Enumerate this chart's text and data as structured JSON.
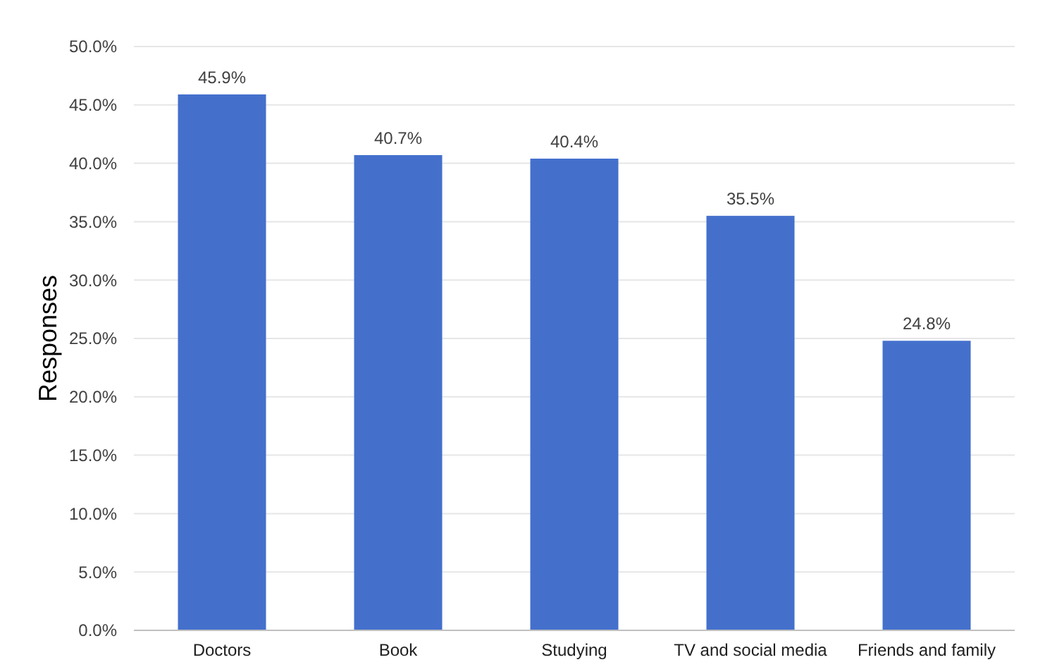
{
  "chart_data": {
    "type": "bar",
    "ylabel": "Responses",
    "categories": [
      "Doctors",
      "Book",
      "Studying",
      "TV and social media",
      "Friends and family"
    ],
    "values": [
      45.9,
      40.7,
      40.4,
      35.5,
      24.8
    ],
    "value_labels": [
      "45.9%",
      "40.7%",
      "40.4%",
      "35.5%",
      "24.8%"
    ],
    "color": "#4470cc",
    "ylim": [
      0,
      50
    ],
    "yticks": [
      {
        "value": 0,
        "label": "0.0%"
      },
      {
        "value": 5,
        "label": "5.0%"
      },
      {
        "value": 10,
        "label": "10.0%"
      },
      {
        "value": 15,
        "label": "15.0%"
      },
      {
        "value": 20,
        "label": "20.0%"
      },
      {
        "value": 25,
        "label": "25.0%"
      },
      {
        "value": 30,
        "label": "30.0%"
      },
      {
        "value": 35,
        "label": "35.0%"
      },
      {
        "value": 40,
        "label": "40.0%"
      },
      {
        "value": 45,
        "label": "45.0%"
      },
      {
        "value": 50,
        "label": "50.0%"
      }
    ],
    "grid": "y"
  }
}
